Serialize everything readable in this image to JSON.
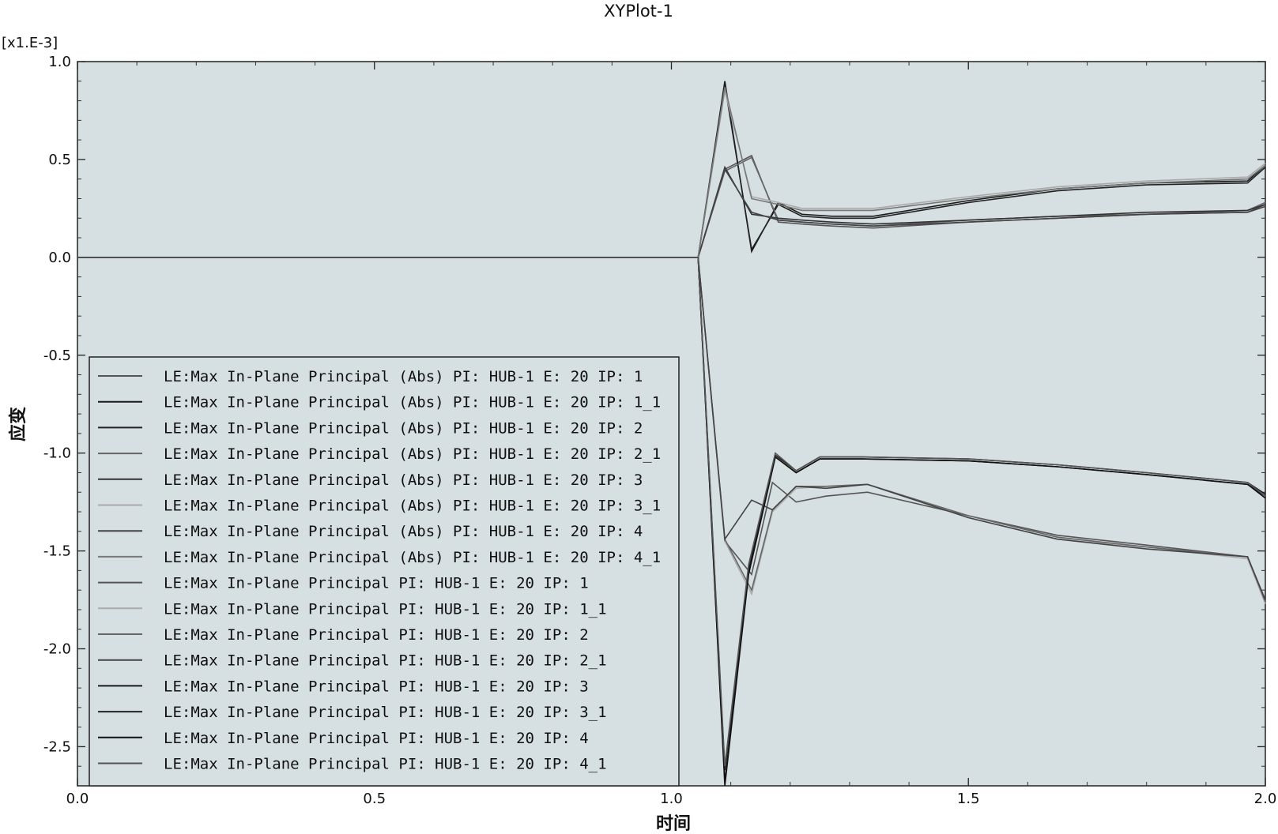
{
  "chart_data": {
    "type": "line",
    "title": "XYPlot-1",
    "xlabel": "时间",
    "ylabel": "应变",
    "y_scale_label": "[x1.E-3]",
    "xlim": [
      0.0,
      2.0
    ],
    "ylim": [
      -2.7,
      1.0
    ],
    "x_ticks": [
      "0.0",
      "0.5",
      "1.0",
      "1.5",
      "2.0"
    ],
    "y_ticks": [
      "1.0",
      "0.5",
      "0.0",
      "-0.5",
      "-1.0",
      "-1.5",
      "-2.0",
      "-2.5"
    ],
    "y_tick_values": [
      1.0,
      0.5,
      0.0,
      -0.5,
      -1.0,
      -1.5,
      -2.0,
      -2.5
    ],
    "x_tick_values": [
      0.0,
      0.5,
      1.0,
      1.5,
      2.0
    ],
    "grid": false,
    "legend_position": "bottom-left",
    "series": [
      {
        "name": "LE:Max In-Plane Principal (Abs) PI: HUB-1 E: 20 IP: 1",
        "color": "#555555",
        "x": [
          0,
          1.045,
          1.09,
          1.135,
          1.18,
          1.22,
          1.27,
          1.34,
          1.5,
          1.65,
          1.8,
          1.97,
          2.0
        ],
        "y": [
          0,
          0,
          0.45,
          0.52,
          0.18,
          0.17,
          0.16,
          0.15,
          0.18,
          0.2,
          0.22,
          0.23,
          0.27
        ]
      },
      {
        "name": "LE:Max In-Plane Principal (Abs) PI: HUB-1 E: 20 IP: 1_1",
        "color": "#1a1a1a",
        "x": [
          0,
          1.045,
          1.09,
          1.135,
          1.18,
          1.22,
          1.27,
          1.34,
          1.5,
          1.65,
          1.8,
          1.97,
          2.0
        ],
        "y": [
          0,
          0,
          0.9,
          0.03,
          0.28,
          0.22,
          0.21,
          0.21,
          0.29,
          0.35,
          0.38,
          0.39,
          0.47
        ]
      },
      {
        "name": "LE:Max In-Plane Principal (Abs) PI: HUB-1 E: 20 IP: 2",
        "color": "#222222",
        "x": [
          0,
          1.045,
          1.09,
          1.135,
          1.18,
          1.22,
          1.27,
          1.34,
          1.5,
          1.65,
          1.8,
          1.97,
          2.0
        ],
        "y": [
          0,
          0,
          0.88,
          0.04,
          0.27,
          0.21,
          0.2,
          0.2,
          0.28,
          0.34,
          0.37,
          0.38,
          0.46
        ]
      },
      {
        "name": "LE:Max In-Plane Principal (Abs) PI: HUB-1 E: 20 IP: 2_1",
        "color": "#666666",
        "x": [
          0,
          1.045,
          1.09,
          1.135,
          1.18,
          1.22,
          1.27,
          1.34,
          1.5,
          1.65,
          1.8,
          1.97,
          2.0
        ],
        "y": [
          0,
          0,
          0.44,
          0.51,
          0.19,
          0.18,
          0.17,
          0.16,
          0.19,
          0.21,
          0.22,
          0.24,
          0.28
        ]
      },
      {
        "name": "LE:Max In-Plane Principal (Abs) PI: HUB-1 E: 20 IP: 3",
        "color": "#333333",
        "x": [
          0,
          1.045,
          1.09,
          1.135,
          1.18,
          1.22,
          1.27,
          1.34,
          1.5,
          1.65,
          1.8,
          1.97,
          2.0
        ],
        "y": [
          0,
          0,
          0.46,
          0.22,
          0.2,
          0.19,
          0.18,
          0.17,
          0.19,
          0.21,
          0.23,
          0.24,
          0.27
        ]
      },
      {
        "name": "LE:Max In-Plane Principal (Abs) PI: HUB-1 E: 20 IP: 3_1",
        "color": "#aaaaaa",
        "x": [
          0,
          1.045,
          1.09,
          1.135,
          1.18,
          1.22,
          1.27,
          1.34,
          1.5,
          1.65,
          1.8,
          1.97,
          2.0
        ],
        "y": [
          0,
          0,
          0.85,
          0.31,
          0.28,
          0.25,
          0.25,
          0.25,
          0.31,
          0.36,
          0.39,
          0.41,
          0.48
        ]
      },
      {
        "name": "LE:Max In-Plane Principal (Abs) PI: HUB-1 E: 20 IP: 4",
        "color": "#444444",
        "x": [
          0,
          1.045,
          1.09,
          1.135,
          1.18,
          1.22,
          1.27,
          1.34,
          1.5,
          1.65,
          1.8,
          1.97,
          2.0
        ],
        "y": [
          0,
          0,
          0.45,
          0.23,
          0.19,
          0.18,
          0.17,
          0.16,
          0.18,
          0.2,
          0.22,
          0.23,
          0.26
        ]
      },
      {
        "name": "LE:Max In-Plane Principal (Abs) PI: HUB-1 E: 20 IP: 4_1",
        "color": "#777777",
        "x": [
          0,
          1.045,
          1.09,
          1.135,
          1.18,
          1.22,
          1.27,
          1.34,
          1.5,
          1.65,
          1.8,
          1.97,
          2.0
        ],
        "y": [
          0,
          0,
          0.87,
          0.3,
          0.27,
          0.24,
          0.24,
          0.24,
          0.3,
          0.35,
          0.38,
          0.4,
          0.47
        ]
      },
      {
        "name": "LE:Max In-Plane Principal PI: HUB-1 E: 20 IP: 1",
        "color": "#555555",
        "x": [
          0,
          1.045,
          1.09,
          1.135,
          1.17,
          1.21,
          1.26,
          1.33,
          1.5,
          1.65,
          1.8,
          1.97,
          2.0
        ],
        "y": [
          0,
          0,
          -1.45,
          -1.62,
          -1.15,
          -1.25,
          -1.22,
          -1.2,
          -1.32,
          -1.42,
          -1.47,
          -1.53,
          -1.76
        ]
      },
      {
        "name": "LE:Max In-Plane Principal PI: HUB-1 E: 20 IP: 1_1",
        "color": "#aaaaaa",
        "x": [
          0,
          1.045,
          1.09,
          1.135,
          1.17,
          1.21,
          1.26,
          1.33,
          1.5,
          1.65,
          1.8,
          1.97,
          2.0
        ],
        "y": [
          0,
          0,
          -1.45,
          -1.72,
          -1.3,
          -1.18,
          -1.17,
          -1.16,
          -1.33,
          -1.44,
          -1.48,
          -1.54,
          -1.77
        ]
      },
      {
        "name": "LE:Max In-Plane Principal PI: HUB-1 E: 20 IP: 2",
        "color": "#666666",
        "x": [
          0,
          1.045,
          1.09,
          1.135,
          1.17,
          1.21,
          1.26,
          1.33,
          1.5,
          1.65,
          1.8,
          1.97,
          2.0
        ],
        "y": [
          0,
          0,
          -1.44,
          -1.7,
          -1.29,
          -1.17,
          -1.17,
          -1.16,
          -1.32,
          -1.43,
          -1.48,
          -1.53,
          -1.76
        ]
      },
      {
        "name": "LE:Max In-Plane Principal PI: HUB-1 E: 20 IP: 2_1",
        "color": "#444444",
        "x": [
          0,
          1.045,
          1.09,
          1.135,
          1.17,
          1.21,
          1.26,
          1.33,
          1.5,
          1.65,
          1.8,
          1.97,
          2.0
        ],
        "y": [
          0,
          0,
          -1.44,
          -1.24,
          -1.29,
          -1.17,
          -1.18,
          -1.16,
          -1.33,
          -1.44,
          -1.49,
          -1.53,
          -1.75
        ]
      },
      {
        "name": "LE:Max In-Plane Principal PI: HUB-1 E: 20 IP: 3",
        "color": "#1a1a1a",
        "x": [
          0,
          1.045,
          1.09,
          1.13,
          1.175,
          1.21,
          1.25,
          1.32,
          1.5,
          1.65,
          1.8,
          1.97,
          2.0
        ],
        "y": [
          0,
          0,
          -2.68,
          -1.6,
          -1.02,
          -1.1,
          -1.03,
          -1.03,
          -1.04,
          -1.07,
          -1.11,
          -1.16,
          -1.22
        ]
      },
      {
        "name": "LE:Max In-Plane Principal PI: HUB-1 E: 20 IP: 3_1",
        "color": "#222222",
        "x": [
          0,
          1.045,
          1.09,
          1.13,
          1.175,
          1.21,
          1.25,
          1.32,
          1.5,
          1.65,
          1.8,
          1.97,
          2.0
        ],
        "y": [
          0,
          0,
          -2.62,
          -1.58,
          -1.01,
          -1.09,
          -1.02,
          -1.02,
          -1.03,
          -1.06,
          -1.1,
          -1.15,
          -1.21
        ]
      },
      {
        "name": "LE:Max In-Plane Principal PI: HUB-1 E: 20 IP: 4",
        "color": "#111111",
        "x": [
          0,
          1.045,
          1.09,
          1.13,
          1.175,
          1.21,
          1.25,
          1.32,
          1.5,
          1.65,
          1.8,
          1.97,
          2.0
        ],
        "y": [
          0,
          0,
          -2.7,
          -1.62,
          -1.02,
          -1.1,
          -1.03,
          -1.03,
          -1.04,
          -1.07,
          -1.11,
          -1.16,
          -1.23
        ]
      },
      {
        "name": "LE:Max In-Plane Principal PI: HUB-1 E: 20 IP: 4_1",
        "color": "#555555",
        "x": [
          0,
          1.045,
          1.09,
          1.13,
          1.175,
          1.21,
          1.25,
          1.32,
          1.5,
          1.65,
          1.8,
          1.97,
          2.0
        ],
        "y": [
          0,
          0,
          -2.6,
          -1.57,
          -1.0,
          -1.09,
          -1.02,
          -1.02,
          -1.03,
          -1.06,
          -1.1,
          -1.15,
          -1.22
        ]
      }
    ]
  }
}
